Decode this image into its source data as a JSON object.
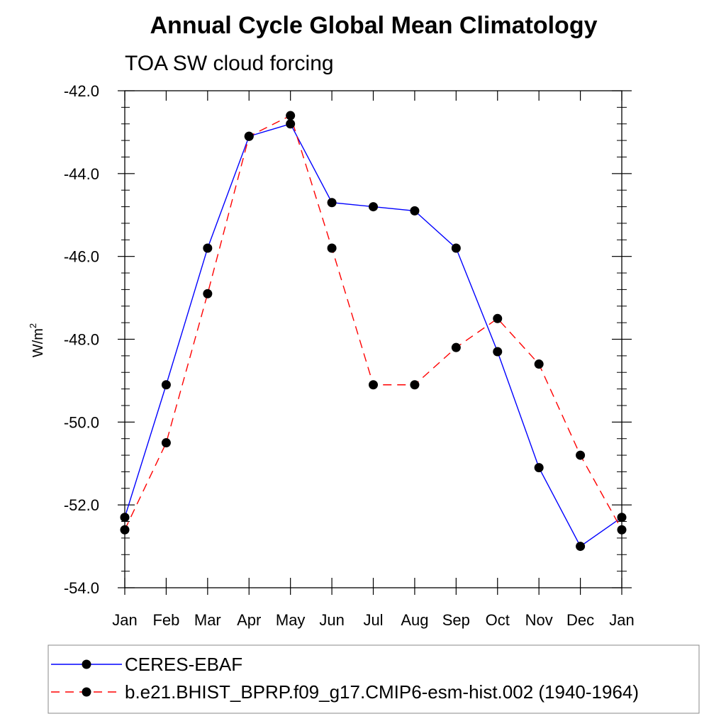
{
  "chart_data": {
    "type": "line",
    "title": "Annual Cycle Global Mean Climatology",
    "subtitle": "TOA SW cloud forcing",
    "ylabel": "W/m",
    "ylabel_superscript": "2",
    "xlabel": "",
    "categories": [
      "Jan",
      "Feb",
      "Mar",
      "Apr",
      "May",
      "Jun",
      "Jul",
      "Aug",
      "Sep",
      "Oct",
      "Nov",
      "Dec",
      "Jan"
    ],
    "ylim": [
      -54.0,
      -42.0
    ],
    "yticks": [
      -54.0,
      -52.0,
      -50.0,
      -48.0,
      -46.0,
      -44.0,
      -42.0
    ],
    "ytick_labels": [
      "-54.0",
      "-52.0",
      "-50.0",
      "-48.0",
      "-46.0",
      "-44.0",
      "-42.0"
    ],
    "series": [
      {
        "name": "CERES-EBAF",
        "color": "#0000ff",
        "line_style": "solid",
        "marker": "filled-circle",
        "values": [
          -52.3,
          -49.1,
          -45.8,
          -43.1,
          -42.8,
          -44.7,
          -44.8,
          -44.9,
          -45.8,
          -48.3,
          -51.1,
          -53.0,
          -52.3
        ]
      },
      {
        "name": "b.e21.BHIST_BPRP.f09_g17.CMIP6-esm-hist.002 (1940-1964)",
        "color": "#ff0000",
        "line_style": "dashed",
        "marker": "filled-circle",
        "values": [
          -52.6,
          -50.5,
          -46.9,
          -43.1,
          -42.6,
          -45.8,
          -49.1,
          -49.1,
          -48.2,
          -47.5,
          -48.6,
          -50.8,
          -52.6
        ]
      }
    ],
    "legend_position": "bottom",
    "grid": false
  }
}
